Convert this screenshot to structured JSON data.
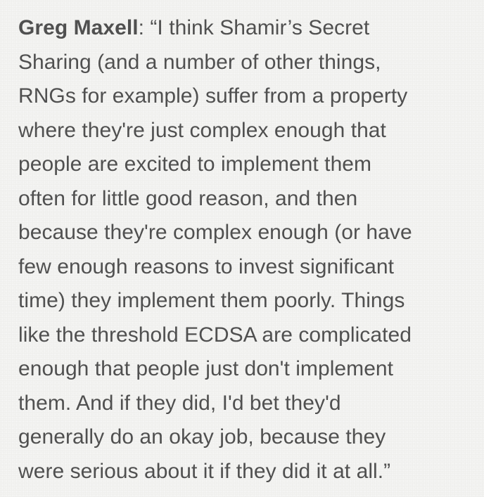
{
  "quote": {
    "speaker": "Greg Maxell",
    "first_line_rest": ": “I think Shamir’s Secret",
    "lines": [
      "Sharing  (and a number of other things,",
      "RNGs for example) suffer from a property",
      "where they're just complex enough that",
      "people are excited to implement them",
      "often for little good reason, and then",
      "because they're complex enough (or have",
      "few enough reasons to invest significant",
      "time) they implement them poorly. Things",
      "like the threshold ECDSA are complicated",
      "enough that people just don't implement",
      "them. And if they did, I'd bet they'd",
      "generally do an okay job, because they",
      "were serious about it if they did it at all.”"
    ]
  }
}
